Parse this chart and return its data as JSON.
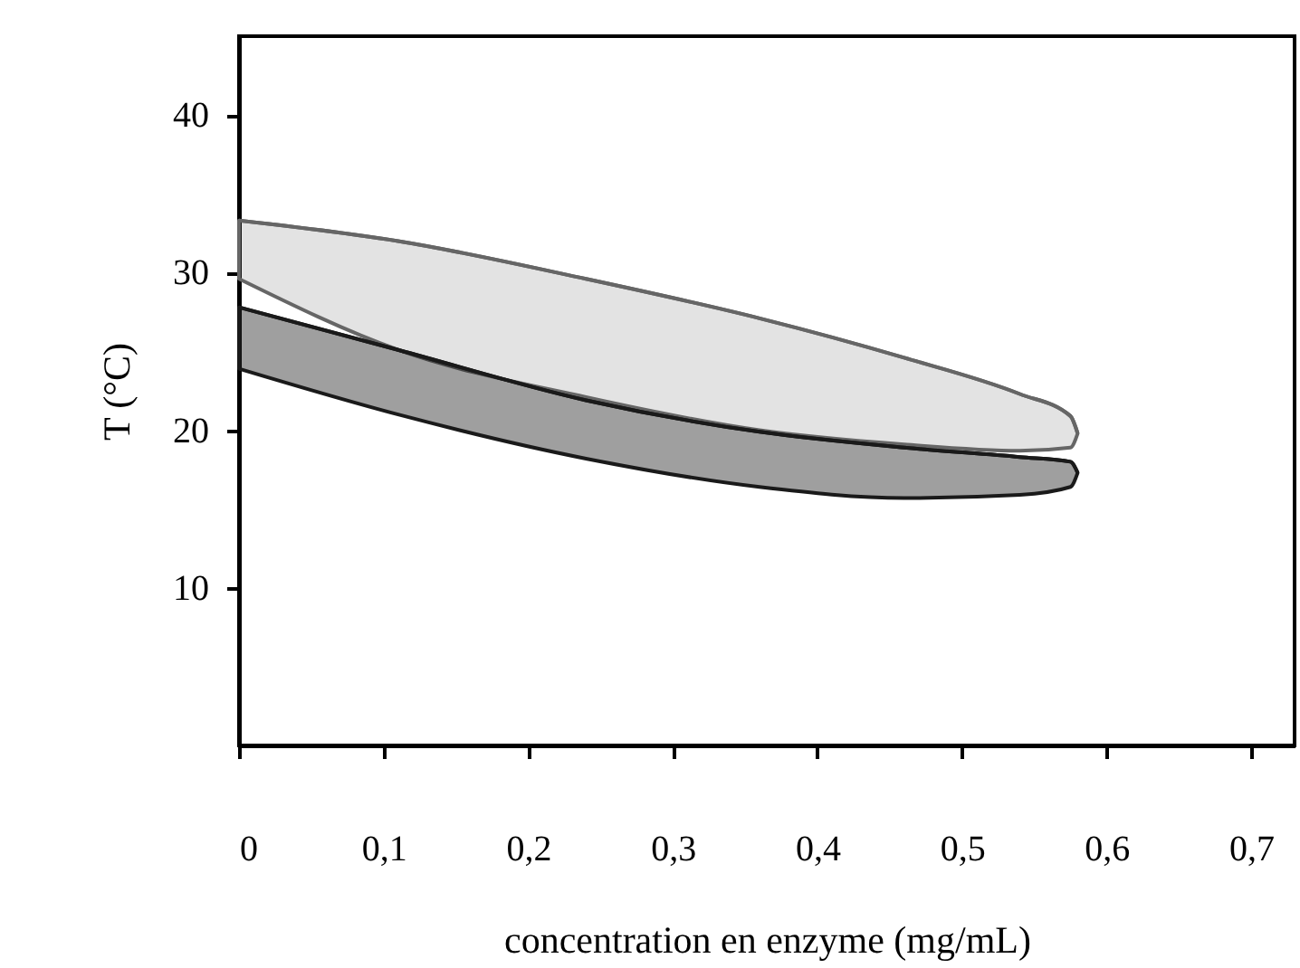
{
  "chart_data": {
    "type": "line",
    "xlabel": "concentration en enzyme (mg/mL)",
    "ylabel": "T (°C)",
    "xlim": [
      0,
      0.73
    ],
    "ylim": [
      0,
      45
    ],
    "xticks": [
      0,
      {
        "value": 0.1,
        "label": "0,1"
      },
      {
        "value": 0.2,
        "label": "0,2"
      },
      {
        "value": 0.3,
        "label": "0,3"
      },
      {
        "value": 0.4,
        "label": "0,4"
      },
      {
        "value": 0.5,
        "label": "0,5"
      },
      {
        "value": 0.6,
        "label": "0,6"
      },
      {
        "value": 0.7,
        "label": "0,7"
      }
    ],
    "yticks": [
      10,
      20,
      30,
      40
    ],
    "series": [
      {
        "color": "#666666",
        "x": [
          0,
          0.11,
          0.24,
          0.36,
          0.46,
          0.54,
          0.575,
          0.58
        ],
        "values": [
          33.3,
          32.0,
          29.6,
          27.1,
          24.6,
          22.3,
          20.9,
          19.8
        ],
        "upper": [
          33.3,
          32.0,
          29.6,
          27.1,
          24.6,
          22.3,
          20.9,
          19.8
        ],
        "lower": [
          29.6,
          25.1,
          22.1,
          20.0,
          19.1,
          18.7,
          18.9,
          19.8
        ]
      },
      {
        "color": "#1a1a1a",
        "x": [
          0,
          0.11,
          0.24,
          0.36,
          0.46,
          0.54,
          0.575,
          0.58
        ],
        "values": [
          27.8,
          25.1,
          21.9,
          19.9,
          18.9,
          18.3,
          18.0,
          17.3
        ],
        "upper": [
          27.8,
          25.1,
          21.9,
          19.9,
          18.9,
          18.3,
          18.0,
          17.3
        ],
        "lower": [
          23.9,
          21.0,
          18.2,
          16.4,
          15.7,
          15.9,
          16.4,
          17.3
        ]
      }
    ]
  }
}
